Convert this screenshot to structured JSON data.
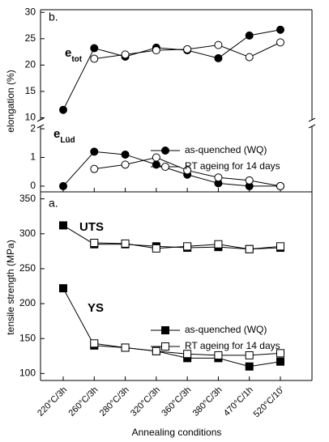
{
  "chart_data": [
    {
      "type": "line",
      "panel_label": "b.",
      "y_label": "elongation (%)",
      "annotations": [
        {
          "symbol": "e",
          "subscript": "tot"
        },
        {
          "symbol": "e",
          "subscript": "Lüd"
        }
      ],
      "ylim": [
        9,
        30.5
      ],
      "yticks": [
        10,
        15,
        20,
        25,
        30
      ],
      "ylim_lower": [
        -0.2,
        2.2
      ],
      "yticks_lower": [
        0,
        1,
        2
      ],
      "series": [
        {
          "name": "as-quenched (WQ)",
          "color": "#000000",
          "marker": "filled-circle",
          "values": [
            11.5,
            23.2,
            21.6,
            23.3,
            22.8,
            21.3,
            25.6,
            26.7
          ],
          "lower_values": [
            0,
            1.2,
            1.1,
            0.75,
            0.4,
            0.1,
            0,
            0
          ]
        },
        {
          "name": "RT ageing for 14 days",
          "color": "#000000",
          "marker": "open-circle",
          "values": [
            null,
            21.2,
            22.0,
            22.8,
            23.0,
            23.8,
            21.5,
            24.3
          ],
          "lower_values": [
            null,
            0.6,
            0.75,
            1.0,
            0.55,
            0.3,
            0.2,
            0
          ]
        }
      ]
    },
    {
      "type": "line",
      "panel_label": "a.",
      "y_label": "tensile strength (MPa)",
      "x_label": "Annealing conditions",
      "annotations": [
        "UTS",
        "YS"
      ],
      "categories": [
        "220°C/3h",
        "260°C/3h",
        "280°C/3h",
        "320°C/3h",
        "360°C/3h",
        "380°C/3h",
        "470°C/1h",
        "520°C/10'"
      ],
      "ylim": [
        90,
        360
      ],
      "yticks": [
        100,
        150,
        200,
        250,
        300,
        350
      ],
      "series": [
        {
          "name": "as-quenched (WQ)",
          "color": "#000000",
          "marker": "filled-square",
          "values": [
            312,
            285,
            285,
            282,
            280,
            281,
            278,
            280
          ],
          "lower_values": [
            222,
            140,
            137,
            132,
            122,
            122,
            110,
            117
          ]
        },
        {
          "name": "RT ageing for 14 days",
          "color": "#000000",
          "marker": "open-square",
          "values": [
            null,
            287,
            286,
            279,
            282,
            285,
            278,
            282
          ],
          "lower_values": [
            null,
            143,
            137,
            132,
            128,
            126,
            126,
            129
          ]
        }
      ]
    }
  ]
}
